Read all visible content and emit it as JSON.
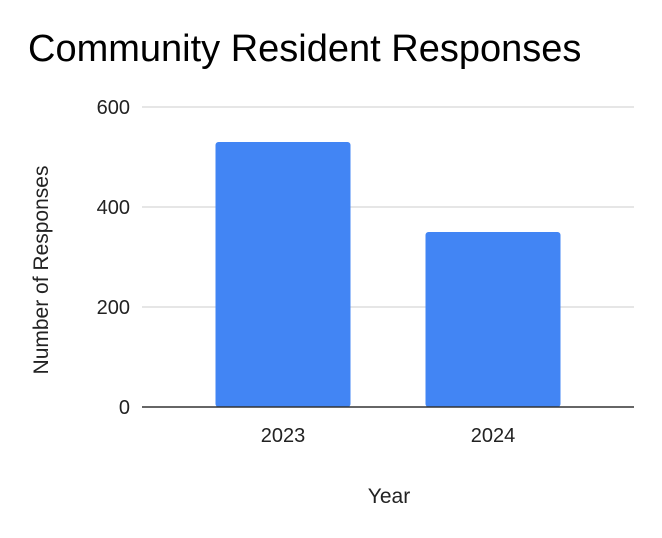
{
  "chart_data": {
    "type": "bar",
    "title": "Community Resident Responses",
    "xlabel": "Year",
    "ylabel": "Number of Responses",
    "categories": [
      "2023",
      "2024"
    ],
    "series": [
      {
        "values": [
          530,
          350
        ]
      }
    ],
    "ylim": [
      0,
      600
    ],
    "yticks": [
      0,
      200,
      400,
      600
    ],
    "grid": true,
    "legend": "none",
    "colors": {
      "bar": "#4285f4",
      "grid": "#cccccc",
      "axis": "#333333",
      "text": "#222222"
    }
  }
}
